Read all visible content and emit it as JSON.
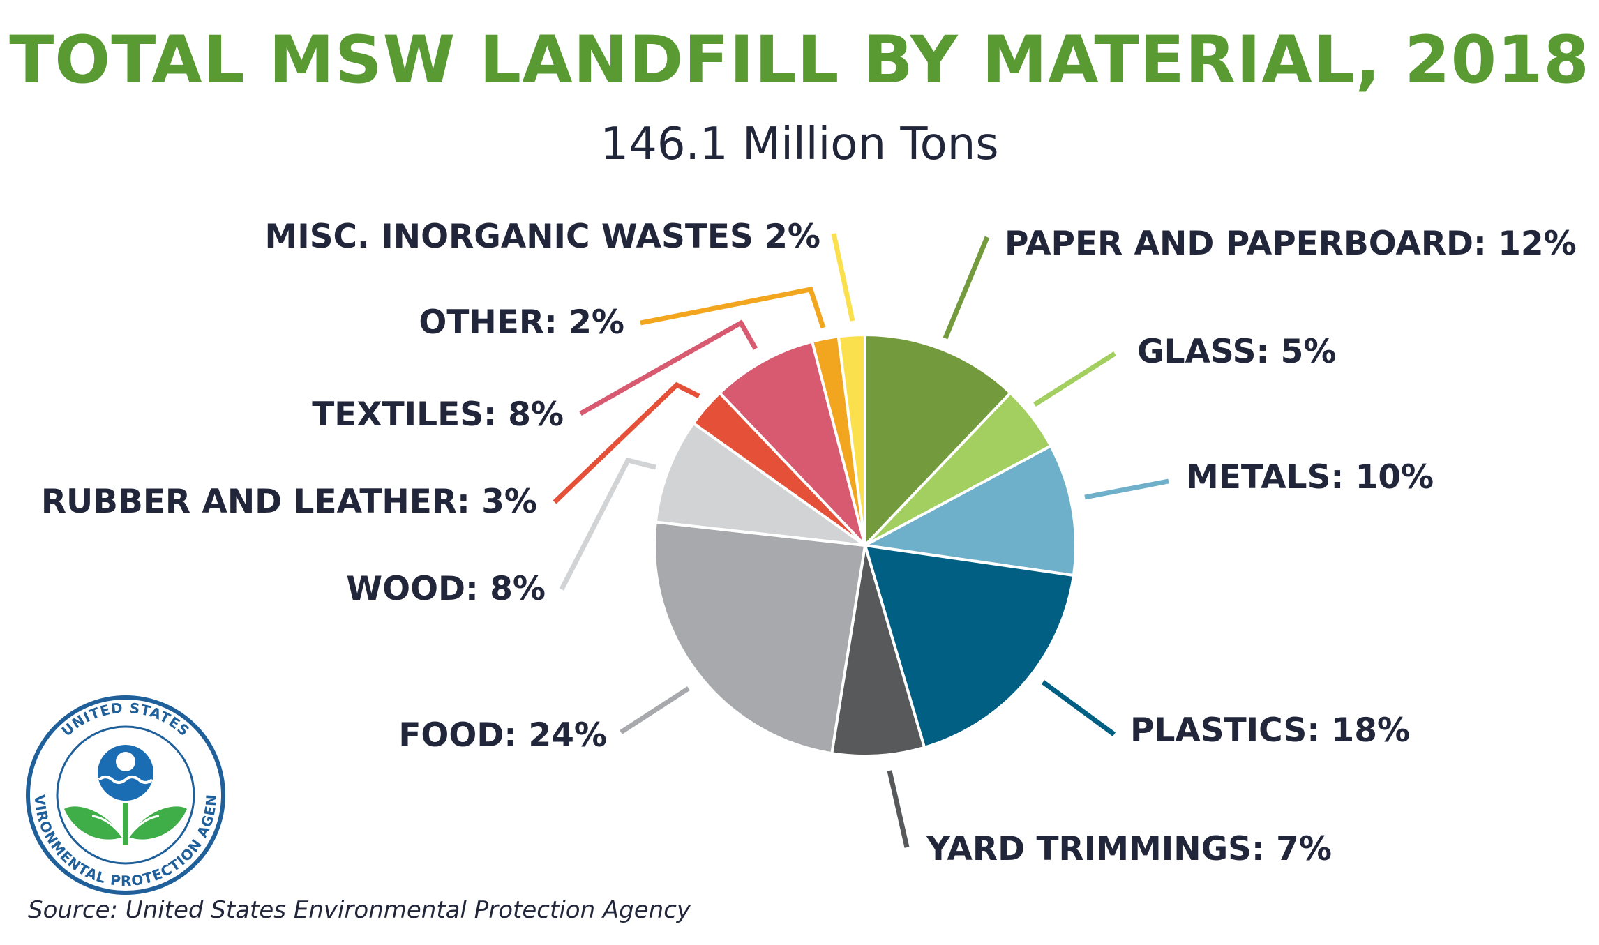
{
  "chart_data": {
    "type": "pie",
    "title": "TOTAL MSW LANDFILL BY MATERIAL, 2018",
    "subtitle": "146.1 Million Tons",
    "slices": [
      {
        "key": "paper",
        "label": "PAPER AND PAPERBOARD: 12%",
        "value": 12,
        "color": "#739a3c"
      },
      {
        "key": "glass",
        "label": "GLASS: 5%",
        "value": 5,
        "color": "#a3ce60"
      },
      {
        "key": "metals",
        "label": "METALS: 10%",
        "value": 10,
        "color": "#6eb0c9"
      },
      {
        "key": "plastics",
        "label": "PLASTICS: 18%",
        "value": 18,
        "color": "#005f82"
      },
      {
        "key": "yard",
        "label": "YARD TRIMMINGS: 7%",
        "value": 7,
        "color": "#58595b"
      },
      {
        "key": "food",
        "label": "FOOD: 24%",
        "value": 24,
        "color": "#a7a9ac"
      },
      {
        "key": "wood",
        "label": "WOOD: 8%",
        "value": 8,
        "color": "#d1d3d4"
      },
      {
        "key": "rubber",
        "label": "RUBBER AND LEATHER: 3%",
        "value": 3,
        "color": "#e55038"
      },
      {
        "key": "textiles",
        "label": "TEXTILES: 8%",
        "value": 8,
        "color": "#d75a70"
      },
      {
        "key": "other",
        "label": "OTHER: 2%",
        "value": 2,
        "color": "#f2a61f"
      },
      {
        "key": "misc",
        "label": "MISC. INORGANIC WASTES 2%",
        "value": 2,
        "color": "#fbe04d"
      }
    ],
    "legend": "callout-labels"
  },
  "source": "Source: United States Environmental Protection Agency",
  "logo": {
    "icon": "epa-seal-icon",
    "text_top": "UNITED STATES",
    "text_bottom": "ENVIRONMENTAL PROTECTION AGENCY",
    "colors": {
      "ring": "#1f5f9a",
      "water": "#1a6db3",
      "leaf": "#3fae49"
    }
  }
}
